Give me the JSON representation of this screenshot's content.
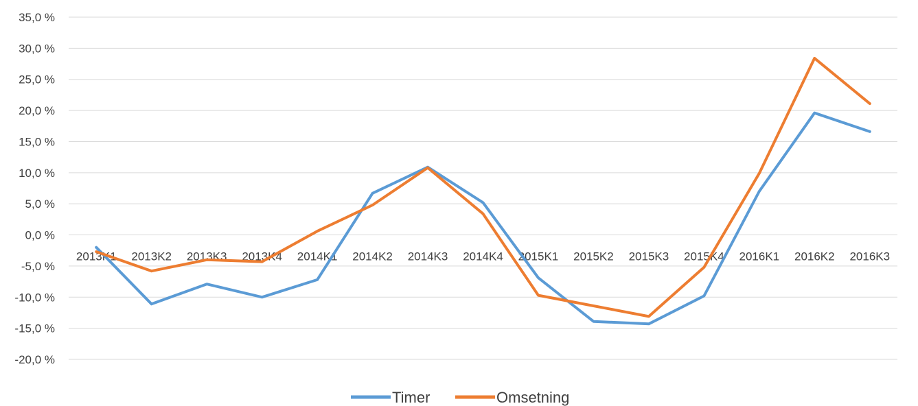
{
  "chart_data": {
    "type": "line",
    "categories": [
      "2013K1",
      "2013K2",
      "2013K3",
      "2013K4",
      "2014K1",
      "2014K2",
      "2014K3",
      "2014K4",
      "2015K1",
      "2015K2",
      "2015K3",
      "2015K4",
      "2016K1",
      "2016K2",
      "2016K3"
    ],
    "series": [
      {
        "name": "Timer",
        "color": "#5b9bd5",
        "values": [
          -2.0,
          -11.1,
          -7.9,
          -10.0,
          -7.2,
          6.7,
          10.9,
          5.2,
          -6.9,
          -13.9,
          -14.3,
          -9.8,
          7.0,
          19.6,
          16.6
        ]
      },
      {
        "name": "Omsetning",
        "color": "#ed7d31",
        "values": [
          -2.7,
          -5.8,
          -4.0,
          -4.3,
          0.6,
          4.8,
          10.8,
          3.4,
          -9.7,
          -11.4,
          -13.1,
          -5.2,
          9.9,
          28.4,
          21.1
        ]
      }
    ],
    "yticks": [
      "35,0 %",
      "30,0 %",
      "25,0 %",
      "20,0 %",
      "15,0 %",
      "10,0 %",
      "5,0 %",
      "0,0 %",
      "-5,0 %",
      "-10,0 %",
      "-15,0 %",
      "-20,0 %"
    ],
    "ylim": [
      -20,
      35
    ],
    "grid": true,
    "legend_position": "bottom",
    "gridline_color": "#d9d9d9"
  }
}
